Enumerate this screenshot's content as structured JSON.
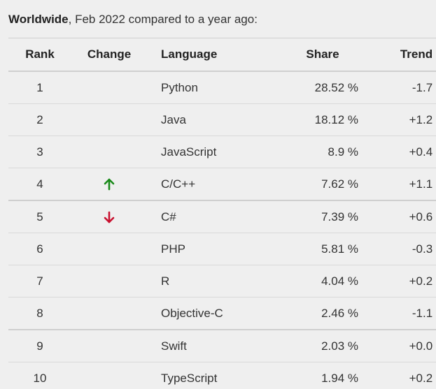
{
  "caption": {
    "region": "Worldwide",
    "rest": ", Feb 2022 compared to a year ago:"
  },
  "columns": {
    "rank": "Rank",
    "change": "Change",
    "language": "Language",
    "share": "Share",
    "trend": "Trend"
  },
  "colors": {
    "up": "#1a8a1a",
    "down": "#c8102e"
  },
  "rows": [
    {
      "rank": "1",
      "change": "",
      "language": "Python",
      "share": "28.52 %",
      "trend": "-1.7 %"
    },
    {
      "rank": "2",
      "change": "",
      "language": "Java",
      "share": "18.12 %",
      "trend": "+1.2 %"
    },
    {
      "rank": "3",
      "change": "",
      "language": "JavaScript",
      "share": "8.9 %",
      "trend": "+0.4 %"
    },
    {
      "rank": "4",
      "change": "up-arrow-icon",
      "language": "C/C++",
      "share": "7.62 %",
      "trend": "+1.1 %"
    },
    {
      "rank": "5",
      "change": "down-arrow-icon",
      "language": "C#",
      "share": "7.39 %",
      "trend": "+0.6 %"
    },
    {
      "rank": "6",
      "change": "",
      "language": "PHP",
      "share": "5.81 %",
      "trend": "-0.3 %"
    },
    {
      "rank": "7",
      "change": "",
      "language": "R",
      "share": "4.04 %",
      "trend": "+0.2 %"
    },
    {
      "rank": "8",
      "change": "",
      "language": "Objective-C",
      "share": "2.46 %",
      "trend": "-1.1 %"
    },
    {
      "rank": "9",
      "change": "",
      "language": "Swift",
      "share": "2.03 %",
      "trend": "+0.0 %"
    },
    {
      "rank": "10",
      "change": "",
      "language": "TypeScript",
      "share": "1.94 %",
      "trend": "+0.2 %"
    }
  ]
}
